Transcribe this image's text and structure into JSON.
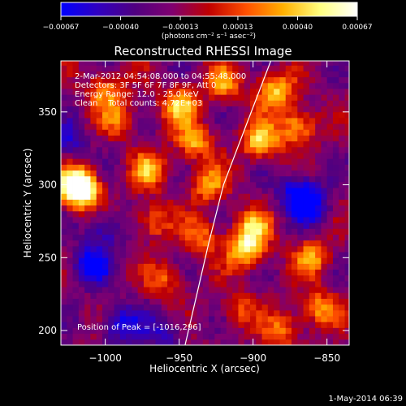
{
  "chart_data": {
    "type": "heatmap",
    "title": "Reconstructed RHESSI Image",
    "xlabel": "Heliocentric X (arcsec)",
    "ylabel": "Heliocentric Y (arcsec)",
    "xlim": [
      -1030,
      -835
    ],
    "ylim": [
      190,
      385
    ],
    "x_ticks": [
      -1000,
      -950,
      -900,
      -850
    ],
    "x_tick_labels": [
      "−1000",
      "−950",
      "−900",
      "−850"
    ],
    "y_ticks": [
      200,
      250,
      300,
      350
    ],
    "y_tick_labels": [
      "200",
      "250",
      "300",
      "350"
    ],
    "colorbar": {
      "range": [
        -0.00067,
        0.00067
      ],
      "ticks": [
        -0.00067,
        -0.0004,
        -0.00013,
        0.00013,
        0.0004,
        0.00067
      ],
      "tick_labels": [
        "−0.00067",
        "−0.00040",
        "−0.00013",
        "0.00013",
        "0.00040",
        "0.00067"
      ],
      "unit": "(photons cm⁻² s⁻¹ asec⁻²)",
      "colormap": [
        "#0000ff",
        "#3000c0",
        "#500080",
        "#800070",
        "#c00000",
        "#ff5000",
        "#ffb000",
        "#ffff80",
        "#ffffff"
      ]
    },
    "info_lines": [
      "2-Mar-2012 04:54:08.000 to 04:55:48.000",
      "Detectors: 3F 5F 6F 7F 8F 9F, Att 0",
      "Energy Range: 12.0 - 25.0 keV",
      "Clean    Total counts: 4.72E+03"
    ],
    "peak_label": "Position of Peak = [-1016,296]",
    "limb_curve": [
      [
        -946,
        190
      ],
      [
        -938,
        225
      ],
      [
        -930,
        260
      ],
      [
        -920,
        300
      ],
      [
        -905,
        340
      ],
      [
        -888,
        385
      ]
    ],
    "bright_sources": [
      {
        "x": -1020,
        "y": 300,
        "amp": 0.0006
      },
      {
        "x": -1016,
        "y": 296,
        "amp": 0.00067
      },
      {
        "x": -970,
        "y": 310,
        "amp": 0.0005
      },
      {
        "x": -968,
        "y": 275,
        "amp": 0.0004
      },
      {
        "x": -950,
        "y": 355,
        "amp": 0.00055
      },
      {
        "x": -940,
        "y": 330,
        "amp": 0.0005
      },
      {
        "x": -930,
        "y": 300,
        "amp": 0.00045
      },
      {
        "x": -935,
        "y": 265,
        "amp": 0.0004
      },
      {
        "x": -920,
        "y": 370,
        "amp": 0.00045
      },
      {
        "x": -895,
        "y": 330,
        "amp": 0.0006
      },
      {
        "x": -885,
        "y": 365,
        "amp": 0.0006
      },
      {
        "x": -870,
        "y": 340,
        "amp": 0.00055
      },
      {
        "x": -905,
        "y": 255,
        "amp": 0.0006
      },
      {
        "x": -900,
        "y": 270,
        "amp": 0.0005
      },
      {
        "x": -860,
        "y": 250,
        "amp": 0.00045
      },
      {
        "x": -855,
        "y": 215,
        "amp": 0.00045
      },
      {
        "x": -880,
        "y": 200,
        "amp": 0.0004
      },
      {
        "x": -1000,
        "y": 365,
        "amp": 0.00045
      },
      {
        "x": -990,
        "y": 345,
        "amp": 0.00035
      },
      {
        "x": -960,
        "y": 235,
        "amp": 0.00035
      },
      {
        "x": -910,
        "y": 215,
        "amp": 0.0003
      }
    ],
    "dark_sources": [
      {
        "x": -1010,
        "y": 245,
        "amp": -0.00055
      },
      {
        "x": -990,
        "y": 205,
        "amp": -0.00045
      },
      {
        "x": -1000,
        "y": 270,
        "amp": -0.00035
      },
      {
        "x": -870,
        "y": 295,
        "amp": -0.0005
      },
      {
        "x": -860,
        "y": 285,
        "amp": -0.0004
      },
      {
        "x": -960,
        "y": 200,
        "amp": -0.0003
      },
      {
        "x": -1025,
        "y": 330,
        "amp": -0.0003
      }
    ]
  },
  "footer": {
    "timestamp": "1-May-2014 06:39"
  }
}
